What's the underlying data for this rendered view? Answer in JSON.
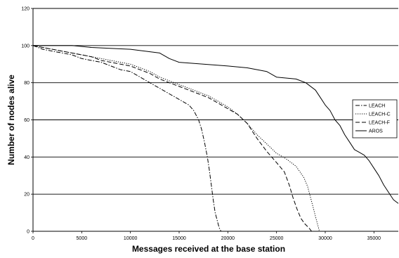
{
  "chart_data": {
    "type": "line",
    "title": "",
    "xlabel": "Messages received at the base station",
    "ylabel": "Number of nodes alive",
    "xlim": [
      0,
      37500
    ],
    "ylim": [
      0,
      120
    ],
    "x_ticks": [
      "0",
      "5000",
      "10000",
      "15000",
      "20000",
      "25000",
      "30000",
      "35000"
    ],
    "y_ticks": [
      "0",
      "20",
      "40",
      "60",
      "80",
      "100",
      "120"
    ],
    "grid": "horizontal",
    "legend_placement": "right",
    "series": [
      {
        "name": "LEACH",
        "style": "dash-dot",
        "color": "#000000",
        "points": [
          [
            0,
            100
          ],
          [
            1000,
            98
          ],
          [
            2000,
            97
          ],
          [
            3000,
            96
          ],
          [
            4000,
            95
          ],
          [
            5000,
            93
          ],
          [
            6000,
            92
          ],
          [
            7000,
            91
          ],
          [
            8000,
            89
          ],
          [
            9000,
            87
          ],
          [
            10000,
            86
          ],
          [
            11000,
            83
          ],
          [
            12000,
            80
          ],
          [
            13000,
            77
          ],
          [
            14000,
            74
          ],
          [
            15000,
            71
          ],
          [
            16000,
            68
          ],
          [
            16500,
            65
          ],
          [
            17000,
            60
          ],
          [
            17300,
            55
          ],
          [
            17600,
            48
          ],
          [
            17900,
            40
          ],
          [
            18100,
            33
          ],
          [
            18300,
            25
          ],
          [
            18500,
            17
          ],
          [
            18700,
            10
          ],
          [
            18900,
            6
          ],
          [
            19100,
            2
          ],
          [
            19300,
            0
          ]
        ]
      },
      {
        "name": "LEACH-C",
        "style": "dotted",
        "color": "#000000",
        "points": [
          [
            0,
            100
          ],
          [
            1000,
            99
          ],
          [
            2000,
            98
          ],
          [
            3000,
            97
          ],
          [
            4000,
            96
          ],
          [
            5000,
            95
          ],
          [
            6000,
            94
          ],
          [
            7000,
            93
          ],
          [
            8000,
            92
          ],
          [
            9000,
            91
          ],
          [
            10000,
            90
          ],
          [
            11000,
            88
          ],
          [
            12000,
            86
          ],
          [
            13000,
            83
          ],
          [
            14000,
            81
          ],
          [
            15000,
            79
          ],
          [
            16000,
            77
          ],
          [
            17000,
            75
          ],
          [
            18000,
            73
          ],
          [
            19000,
            70
          ],
          [
            20000,
            67
          ],
          [
            21000,
            63
          ],
          [
            22000,
            58
          ],
          [
            23000,
            52
          ],
          [
            24000,
            47
          ],
          [
            25000,
            42
          ],
          [
            26000,
            39
          ],
          [
            27000,
            35
          ],
          [
            27800,
            29
          ],
          [
            28200,
            24
          ],
          [
            28500,
            18
          ],
          [
            28800,
            12
          ],
          [
            29000,
            8
          ],
          [
            29200,
            4
          ],
          [
            29400,
            0
          ]
        ]
      },
      {
        "name": "LEACH-F",
        "style": "dashed",
        "color": "#000000",
        "points": [
          [
            0,
            100
          ],
          [
            1000,
            99
          ],
          [
            2000,
            98
          ],
          [
            3000,
            97
          ],
          [
            4000,
            96
          ],
          [
            5000,
            95
          ],
          [
            6000,
            94
          ],
          [
            7000,
            92
          ],
          [
            8000,
            91
          ],
          [
            9000,
            90
          ],
          [
            10000,
            89
          ],
          [
            11000,
            87
          ],
          [
            12000,
            85
          ],
          [
            13000,
            82
          ],
          [
            14000,
            80
          ],
          [
            15000,
            78
          ],
          [
            16000,
            76
          ],
          [
            17000,
            74
          ],
          [
            18000,
            72
          ],
          [
            19000,
            69
          ],
          [
            20000,
            66
          ],
          [
            21000,
            63
          ],
          [
            22000,
            58
          ],
          [
            23000,
            50
          ],
          [
            24000,
            43
          ],
          [
            25000,
            37
          ],
          [
            25800,
            32
          ],
          [
            26300,
            25
          ],
          [
            26700,
            18
          ],
          [
            27100,
            12
          ],
          [
            27500,
            7
          ],
          [
            27900,
            4
          ],
          [
            28300,
            2
          ],
          [
            28600,
            0
          ]
        ]
      },
      {
        "name": "AROS",
        "style": "solid",
        "color": "#000000",
        "points": [
          [
            0,
            100
          ],
          [
            4000,
            100
          ],
          [
            6000,
            99
          ],
          [
            10000,
            98
          ],
          [
            13000,
            96
          ],
          [
            14000,
            93
          ],
          [
            15000,
            91
          ],
          [
            20000,
            89
          ],
          [
            22000,
            88
          ],
          [
            24000,
            86
          ],
          [
            25000,
            83
          ],
          [
            27000,
            82
          ],
          [
            28000,
            80
          ],
          [
            29000,
            76
          ],
          [
            29500,
            72
          ],
          [
            30000,
            68
          ],
          [
            30500,
            65
          ],
          [
            31000,
            60
          ],
          [
            31500,
            57
          ],
          [
            32000,
            52
          ],
          [
            32500,
            48
          ],
          [
            33000,
            44
          ],
          [
            34000,
            41
          ],
          [
            34500,
            38
          ],
          [
            35000,
            34
          ],
          [
            35500,
            30
          ],
          [
            36000,
            25
          ],
          [
            36500,
            21
          ],
          [
            37000,
            17
          ],
          [
            37500,
            15
          ]
        ]
      }
    ]
  }
}
